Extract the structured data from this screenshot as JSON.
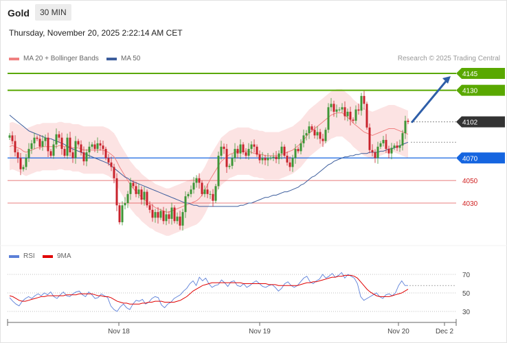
{
  "header": {
    "symbol": "Gold",
    "timeframe": "30 MIN",
    "datetime": "Thursday, November 20, 2025 2:22:14 AM CET"
  },
  "legend": {
    "ma20_bb": "MA 20 + Bollinger Bands",
    "ma50": "MA 50",
    "credit": "Research © 2025 Trading Central",
    "rsi": "RSI",
    "rsi_ma": "9MA"
  },
  "colors": {
    "bull": "#3d9636",
    "bear": "#c8232c",
    "ma20": "#f08080",
    "band": "#fcdede",
    "ma50": "#3c5d9c",
    "resistance": "#59a800",
    "support": "#1565e0",
    "target": "#e05050",
    "current": "#333333",
    "arrow": "#2e5ea8",
    "rsi": "#5b7fd8",
    "rsi_ma": "#e00000"
  },
  "chart_data": [
    {
      "type": "candlestick",
      "title": "Gold",
      "timeframe": "30 MIN",
      "x_labels": [
        "Nov 18",
        "Nov 19",
        "Nov 20",
        "Dec 2"
      ],
      "ylim": [
        4005,
        4155
      ],
      "levels": [
        {
          "label": "4145",
          "value": 4145,
          "kind": "resistance"
        },
        {
          "label": "4130",
          "value": 4130,
          "kind": "resistance"
        },
        {
          "label": "4102",
          "value": 4102,
          "kind": "current"
        },
        {
          "label": "4070",
          "value": 4070,
          "kind": "support"
        },
        {
          "label": "4050",
          "value": 4050,
          "kind": "target"
        },
        {
          "label": "4030",
          "value": 4030,
          "kind": "target"
        }
      ],
      "close": [
        4090,
        4085,
        4075,
        4070,
        4060,
        4062,
        4070,
        4078,
        4083,
        4088,
        4087,
        4080,
        4085,
        4088,
        4076,
        4072,
        4082,
        4091,
        4088,
        4078,
        4072,
        4088,
        4075,
        4070,
        4085,
        4082,
        4075,
        4067,
        4075,
        4080,
        4082,
        4078,
        4083,
        4081,
        4078,
        4070,
        4066,
        4062,
        4052,
        4028,
        4013,
        4028,
        4030,
        4038,
        4048,
        4045,
        4038,
        4042,
        4033,
        4040,
        4028,
        4024,
        4017,
        4022,
        4017,
        4023,
        4014,
        4020,
        4016,
        4026,
        4014,
        4018,
        4010,
        4022,
        4036,
        4038,
        4042,
        4048,
        4052,
        4048,
        4038,
        4042,
        4038,
        4038,
        4032,
        4045,
        4072,
        4080,
        4078,
        4062,
        4063,
        4070,
        4078,
        4074,
        4082,
        4075,
        4072,
        4078,
        4082,
        4080,
        4073,
        4068,
        4070,
        4068,
        4070,
        4070,
        4071,
        4069,
        4074,
        4080,
        4072,
        4066,
        4062,
        4070,
        4078,
        4076,
        4083,
        4090,
        4092,
        4098,
        4095,
        4090,
        4093,
        4087,
        4085,
        4095,
        4115,
        4118,
        4111,
        4113,
        4113,
        4115,
        4107,
        4111,
        4104,
        4103,
        4113,
        4112,
        4125,
        4118,
        4097,
        4077,
        4075,
        4070,
        4080,
        4083,
        4086,
        4078,
        4074,
        4079,
        4081,
        4079,
        4081,
        4092,
        4103,
        4102
      ],
      "ma20": [
        4080,
        4081,
        4080,
        4079,
        4078,
        4076,
        4075,
        4076,
        4077,
        4078,
        4079,
        4079,
        4080,
        4080,
        4080,
        4080,
        4080,
        4080,
        4081,
        4081,
        4080,
        4080,
        4080,
        4079,
        4079,
        4079,
        4078,
        4077,
        4077,
        4077,
        4077,
        4077,
        4077,
        4077,
        4077,
        4076,
        4075,
        4073,
        4071,
        4067,
        4062,
        4058,
        4054,
        4050,
        4046,
        4043,
        4040,
        4038,
        4035,
        4033,
        4031,
        4029,
        4028,
        4026,
        4025,
        4024,
        4023,
        4022,
        4022,
        4023,
        4024,
        4025,
        4026,
        4027,
        4028,
        4029,
        4030,
        4031,
        4032,
        4034,
        4037,
        4041,
        4046,
        4051,
        4055,
        4059,
        4063,
        4067,
        4069,
        4071,
        4073,
        4074,
        4075,
        4076,
        4076,
        4076,
        4076,
        4076,
        4075,
        4074,
        4074,
        4073,
        4073,
        4072,
        4072,
        4072,
        4072,
        4072,
        4072,
        4073,
        4074,
        4075,
        4076,
        4077,
        4079,
        4081,
        4083,
        4086,
        4089,
        4092,
        4094,
        4096,
        4098,
        4100,
        4102,
        4104,
        4106,
        4108,
        4109,
        4110,
        4110,
        4110,
        4108,
        4106,
        4104,
        4101,
        4099,
        4097,
        4095,
        4093,
        4092,
        4091,
        4090,
        4091,
        4092,
        4093,
        4094,
        4095,
        4096,
        4096,
        4096,
        4095,
        4094,
        4093,
        4092,
        4091
      ],
      "ma50": [
        4108,
        4106,
        4104,
        4102,
        4100,
        4098,
        4096,
        4094,
        4093,
        4092,
        4091,
        4090,
        4089,
        4088,
        4087,
        4087,
        4086,
        4085,
        4084,
        4083,
        4082,
        4080,
        4079,
        4078,
        4077,
        4076,
        4075,
        4074,
        4073,
        4072,
        4071,
        4070,
        4069,
        4068,
        4067,
        4066,
        4065,
        4063,
        4061,
        4059,
        4057,
        4055,
        4053,
        4052,
        4050,
        4049,
        4048,
        4047,
        4046,
        4045,
        4044,
        4043,
        4042,
        4041,
        4040,
        4039,
        4038,
        4037,
        4036,
        4035,
        4034,
        4033,
        4032,
        4031,
        4030,
        4030,
        4029,
        4028,
        4028,
        4027,
        4027,
        4027,
        4027,
        4027,
        4027,
        4027,
        4027,
        4027,
        4027,
        4027,
        4027,
        4027,
        4027,
        4027,
        4028,
        4028,
        4029,
        4030,
        4030,
        4031,
        4032,
        4033,
        4034,
        4035,
        4035,
        4036,
        4037,
        4037,
        4038,
        4039,
        4040,
        4040,
        4041,
        4042,
        4043,
        4044,
        4046,
        4047,
        4049,
        4051,
        4053,
        4054,
        4056,
        4058,
        4060,
        4062,
        4064,
        4065,
        4067,
        4068,
        4069,
        4070,
        4071,
        4071,
        4072,
        4072,
        4073,
        4073,
        4074,
        4074,
        4074,
        4075,
        4075,
        4075,
        4075,
        4076,
        4076,
        4077,
        4078,
        4078,
        4079,
        4080,
        4081,
        4082,
        4083,
        4084
      ],
      "bollinger_width": 21,
      "projection_arrow": {
        "from": 4102,
        "to": 4145
      }
    },
    {
      "type": "line",
      "title": "RSI",
      "x_labels": [
        "Nov 18",
        "Nov 19",
        "Nov 20",
        "Dec 2"
      ],
      "ylim": [
        25,
        80
      ],
      "yticks": [
        70,
        50,
        30
      ],
      "series": [
        {
          "name": "RSI",
          "values": [
            45,
            41,
            38,
            36,
            41,
            44,
            46,
            44,
            47,
            49,
            47,
            50,
            48,
            51,
            46,
            44,
            48,
            51,
            47,
            46,
            49,
            51,
            52,
            48,
            46,
            51,
            48,
            44,
            45,
            49,
            47,
            45,
            36,
            32,
            30,
            35,
            38,
            34,
            32,
            38,
            42,
            41,
            43,
            38,
            40,
            44,
            46,
            45,
            37,
            34,
            38,
            40,
            44,
            46,
            48,
            52,
            55,
            60,
            63,
            58,
            67,
            63,
            66,
            60,
            56,
            58,
            59,
            64,
            61,
            57,
            62,
            63,
            58,
            57,
            60,
            56,
            58,
            61,
            63,
            60,
            57,
            56,
            58,
            59,
            56,
            52,
            55,
            60,
            62,
            58,
            56,
            58,
            62,
            66,
            68,
            62,
            60,
            63,
            65,
            70,
            66,
            68,
            71,
            67,
            69,
            72,
            66,
            70,
            68,
            66,
            60,
            46,
            42,
            44,
            46,
            48,
            50,
            46,
            44,
            48,
            49,
            47,
            50,
            58,
            63,
            58,
            58
          ]
        },
        {
          "name": "9MA",
          "values": [
            47,
            46,
            44,
            42,
            41,
            41,
            42,
            43,
            44,
            45,
            46,
            46,
            47,
            47,
            47,
            47,
            47,
            47,
            48,
            48,
            48,
            48,
            49,
            49,
            49,
            49,
            49,
            48,
            47,
            47,
            46,
            46,
            45,
            43,
            41,
            40,
            39,
            39,
            38,
            38,
            38,
            38,
            39,
            39,
            40,
            40,
            41,
            41,
            41,
            40,
            40,
            40,
            40,
            41,
            42,
            44,
            46,
            49,
            52,
            54,
            56,
            58,
            59,
            60,
            61,
            61,
            61,
            61,
            61,
            61,
            61,
            61,
            61,
            61,
            60,
            60,
            60,
            60,
            60,
            60,
            60,
            60,
            59,
            59,
            59,
            58,
            58,
            58,
            58,
            58,
            58,
            58,
            59,
            60,
            61,
            61,
            62,
            62,
            63,
            64,
            65,
            66,
            67,
            67,
            68,
            68,
            69,
            69,
            69,
            68,
            66,
            62,
            58,
            54,
            51,
            49,
            47,
            46,
            46,
            46,
            46,
            47,
            48,
            49,
            50,
            52,
            54
          ]
        }
      ]
    }
  ]
}
